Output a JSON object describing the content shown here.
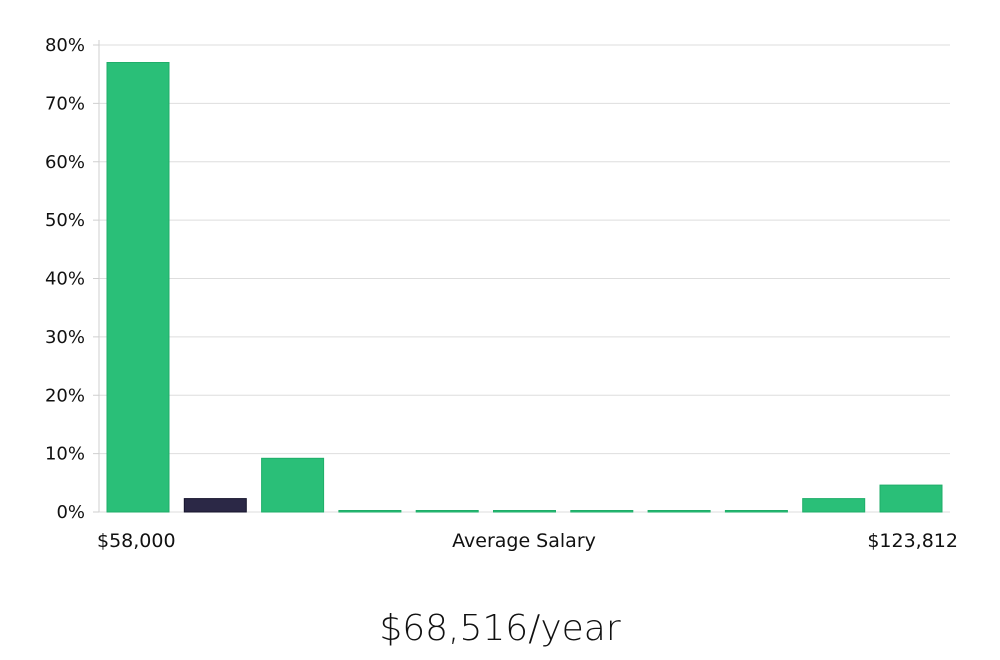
{
  "chart_data": {
    "type": "bar",
    "title": "",
    "xlabel": "Average Salary",
    "ylabel": "",
    "x_min_label": "$58,000",
    "x_max_label": "$123,812",
    "ylim": [
      0,
      80
    ],
    "yticks": [
      0,
      10,
      20,
      30,
      40,
      50,
      60,
      70,
      80
    ],
    "ytick_suffix": "%",
    "values": [
      77,
      2.3,
      9.2,
      0.2,
      0.2,
      0.2,
      0.2,
      0.2,
      0.2,
      2.3,
      4.6
    ],
    "highlight_index": 1,
    "colors": {
      "bar": "#2abf78",
      "bar_edge": "#1fae69",
      "highlight": "#2b2846",
      "highlight_edge": "#15132b"
    }
  },
  "caption": "$68,516/year"
}
